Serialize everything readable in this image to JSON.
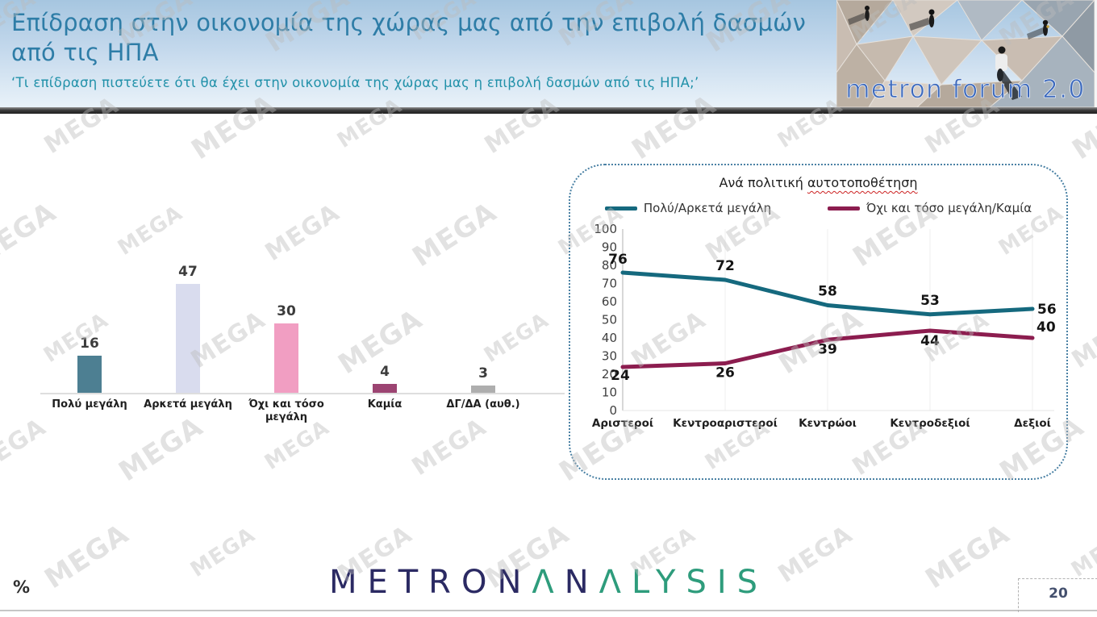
{
  "header": {
    "title_line1": "Επίδραση στην οικονομία της χώρας μας από την  επιβολή δασμών",
    "title_line2": "από τις ΗΠΑ",
    "subtitle": "‘Τι επίδραση πιστεύετε ότι θα έχει στην οικονομία της χώρας μας η επιβολή δασμών από τις ΗΠΑ;’",
    "logo_text": "metron forum 2.0"
  },
  "watermark": {
    "text": "MEGA"
  },
  "colors": {
    "header_title": "#2e7da7",
    "header_subtitle": "#2191a9",
    "logo_navy": "#2b2a63",
    "logo_green": "#2e9c7c",
    "line_box_border": "#4a81a4"
  },
  "chart_data": [
    {
      "type": "bar",
      "categories": [
        "Πολύ μεγάλη",
        "Αρκετά μεγάλη",
        "Όχι και τόσο μεγάλη",
        "Καμία",
        "ΔΓ/ΔΑ (αυθ.)"
      ],
      "values": [
        16,
        47,
        30,
        4,
        3
      ],
      "colors": [
        "#4d7f92",
        "#d9dcee",
        "#f19ec2",
        "#9c4472",
        "#aeaeae"
      ],
      "title": "",
      "xlabel": "",
      "ylabel": "%",
      "ylim": [
        0,
        50
      ],
      "grid": "off",
      "value_labels": "above bars"
    },
    {
      "type": "line",
      "title": "Ανά πολιτική αυτοτοποθέτηση",
      "title_parts": {
        "prefix": "Ανά πολιτική ",
        "marked": "αυτοτοποθέτηση"
      },
      "categories": [
        "Αριστεροί",
        "Κεντροαριστεροί",
        "Κεντρώοι",
        "Κεντροδεξιοί",
        "Δεξιοί"
      ],
      "series": [
        {
          "name": "Πολύ/Αρκετά μεγάλη",
          "color": "#15697e",
          "values": [
            76,
            72,
            58,
            53,
            56
          ]
        },
        {
          "name": "Όχι και τόσο μεγάλη/Καμία",
          "color": "#8c1d4f",
          "values": [
            24,
            26,
            39,
            44,
            40
          ]
        }
      ],
      "ylim": [
        0,
        100
      ],
      "yticks": [
        0,
        10,
        20,
        30,
        40,
        50,
        60,
        70,
        80,
        90,
        100
      ],
      "grid": "vertical",
      "legend_position": "top"
    }
  ],
  "footer": {
    "unit_label": "%",
    "page_number": "20",
    "logo_letters": [
      {
        "ch": "M",
        "color": "#2b2a63"
      },
      {
        "ch": "E",
        "color": "#2b2a63"
      },
      {
        "ch": "T",
        "color": "#2b2a63"
      },
      {
        "ch": "R",
        "color": "#2b2a63"
      },
      {
        "ch": "O",
        "color": "#2b2a63"
      },
      {
        "ch": "N",
        "color": "#2b2a63"
      },
      {
        "ch": "Λ",
        "color": "#2e9c7c"
      },
      {
        "ch": "N",
        "color": "#2b2a63"
      },
      {
        "ch": "Λ",
        "color": "#2e9c7c"
      },
      {
        "ch": "L",
        "color": "#2e9c7c"
      },
      {
        "ch": "Y",
        "color": "#2e9c7c"
      },
      {
        "ch": "S",
        "color": "#2e9c7c"
      },
      {
        "ch": "I",
        "color": "#2e9c7c"
      },
      {
        "ch": "S",
        "color": "#2e9c7c"
      }
    ]
  }
}
